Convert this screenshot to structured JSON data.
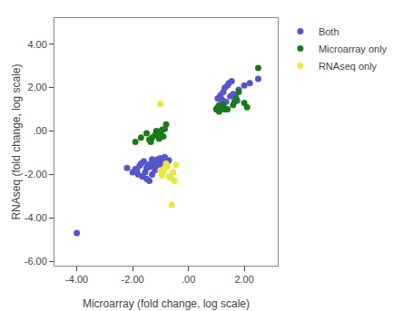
{
  "chart_data": {
    "type": "scatter",
    "xlabel": "Microarray (fold change, log scale)",
    "ylabel": "RNAseq (fold change, log scale)",
    "series": [
      {
        "name": "Both",
        "color": "#5555CC",
        "x": [
          -4.0,
          -2.2,
          -2.0,
          -1.9,
          -1.85,
          -1.8,
          -1.75,
          -1.7,
          -1.65,
          -1.6,
          -1.55,
          -1.5,
          -1.5,
          -1.45,
          -1.4,
          -1.4,
          -1.35,
          -1.3,
          -1.3,
          -1.25,
          -1.2,
          -1.2,
          -1.15,
          -1.1,
          -1.1,
          -1.05,
          -1.0,
          -1.0,
          -0.95,
          -0.9,
          -0.9,
          -0.85,
          -0.85,
          -0.8,
          -0.75,
          -0.7,
          1.0,
          1.05,
          1.1,
          1.15,
          1.2,
          1.25,
          1.3,
          1.35,
          1.4,
          1.45,
          1.5,
          1.55,
          1.6,
          1.7,
          1.75,
          1.8,
          2.0,
          2.2,
          2.5
        ],
        "values": [
          -4.7,
          -1.7,
          -1.9,
          -1.75,
          -1.8,
          -2.0,
          -1.6,
          -1.5,
          -2.1,
          -1.4,
          -1.9,
          -1.7,
          -2.2,
          -1.55,
          -2.3,
          -1.65,
          -1.5,
          -1.3,
          -2.0,
          -1.6,
          -1.45,
          -1.8,
          -1.4,
          -1.3,
          -1.55,
          -1.6,
          -1.25,
          -1.7,
          -1.35,
          -1.5,
          -1.3,
          -1.2,
          -1.45,
          -1.55,
          -1.4,
          -1.35,
          1.0,
          1.5,
          1.2,
          1.65,
          1.45,
          1.8,
          2.0,
          1.35,
          2.1,
          2.2,
          1.6,
          2.3,
          1.7,
          1.55,
          1.4,
          1.9,
          2.1,
          2.2,
          2.4
        ]
      },
      {
        "name": "Microarray only",
        "color": "#1A7A1A",
        "x": [
          -1.9,
          -1.7,
          -1.5,
          -1.4,
          -1.35,
          -1.3,
          -1.2,
          -1.15,
          -1.1,
          -1.05,
          -1.0,
          -0.95,
          -0.9,
          -0.85,
          -0.8,
          1.0,
          1.05,
          1.1,
          1.15,
          1.2,
          1.25,
          1.3,
          1.35,
          1.4,
          1.6,
          1.65,
          1.7,
          1.8,
          2.0,
          2.1,
          2.5
        ],
        "values": [
          -0.5,
          -0.3,
          -0.1,
          -0.4,
          -0.5,
          -0.3,
          -0.2,
          0.0,
          -0.15,
          -0.35,
          -0.1,
          0.05,
          -0.25,
          0.1,
          0.3,
          1.0,
          1.1,
          0.9,
          1.15,
          1.05,
          1.2,
          1.0,
          1.0,
          1.0,
          1.2,
          1.35,
          1.5,
          1.8,
          1.3,
          1.1,
          2.9
        ]
      },
      {
        "name": "RNAseq only",
        "color": "#E8E840",
        "x": [
          -1.0,
          -1.0,
          -0.9,
          -0.95,
          -0.85,
          -0.8,
          -0.75,
          -0.7,
          -0.65,
          -0.6,
          -0.55,
          -0.5,
          -0.45
        ],
        "values": [
          1.25,
          -1.8,
          -1.85,
          -2.05,
          -1.7,
          -1.5,
          -1.65,
          -2.1,
          -2.15,
          -3.4,
          -1.9,
          -2.3,
          -1.55
        ]
      }
    ],
    "xlim": [
      -4.8,
      3.2
    ],
    "ylim": [
      -6.2,
      5.2
    ],
    "xticks": [
      {
        "value": -4.0,
        "label": "-4.00"
      },
      {
        "value": -2.0,
        "label": "-2.00"
      },
      {
        "value": 0.0,
        "label": ".00"
      },
      {
        "value": 2.0,
        "label": "2.00"
      }
    ],
    "yticks": [
      {
        "value": -6.0,
        "label": "-6.00"
      },
      {
        "value": -4.0,
        "label": "-4.00"
      },
      {
        "value": -2.0,
        "label": "-2.00"
      },
      {
        "value": 0.0,
        "label": ".00"
      },
      {
        "value": 2.0,
        "label": "2.00"
      },
      {
        "value": 4.0,
        "label": "4.00"
      }
    ],
    "grid": false,
    "legend": "upper right",
    "marker": "circle"
  }
}
